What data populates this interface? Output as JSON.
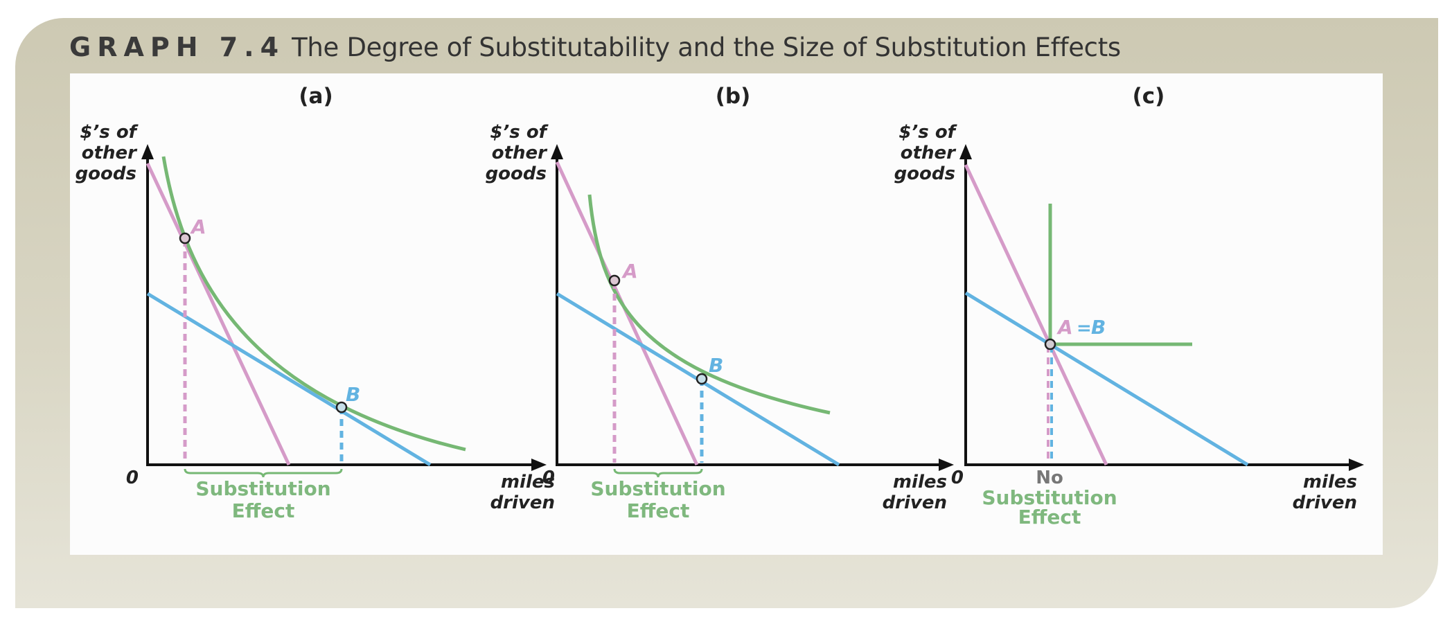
{
  "header": {
    "graph_label": "GRAPH 7.4",
    "title": "The Degree of Substitutability and the Size of Substitution Effects"
  },
  "colors": {
    "indifference_curve": "#76b874",
    "budget_original": "#d59bc8",
    "budget_compensated": "#62b3e1",
    "effect_text": "#7fb87e",
    "no_text": "#777777"
  },
  "axes": {
    "y_label": [
      "$’s of",
      "other",
      "goods"
    ],
    "x_label": [
      "miles",
      "driven"
    ],
    "origin": "0"
  },
  "panels": [
    {
      "tag": "(a)",
      "point_a": "A",
      "point_b": "B",
      "effect_lines": [
        "Substitution",
        "Effect"
      ]
    },
    {
      "tag": "(b)",
      "point_a": "A",
      "point_b": "B",
      "effect_lines": [
        "Substitution",
        "Effect"
      ]
    },
    {
      "tag": "(c)",
      "point_a": "A",
      "equals": "=",
      "point_b": "B",
      "effect_no": "No",
      "effect_lines": [
        "Substitution",
        "Effect"
      ]
    }
  ]
}
